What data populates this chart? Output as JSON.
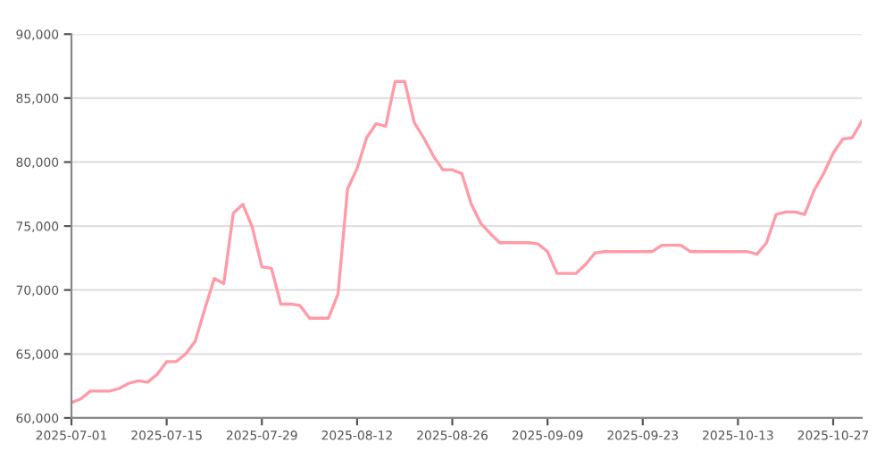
{
  "chart_data": {
    "type": "line",
    "categories": [
      "2025-07-01",
      null,
      null,
      null,
      null,
      null,
      null,
      null,
      null,
      null,
      "2025-07-15",
      null,
      null,
      null,
      null,
      null,
      null,
      null,
      null,
      null,
      "2025-07-29",
      null,
      null,
      null,
      null,
      null,
      null,
      null,
      null,
      null,
      "2025-08-12",
      null,
      null,
      null,
      null,
      null,
      null,
      null,
      null,
      null,
      "2025-08-26",
      null,
      null,
      null,
      null,
      null,
      null,
      null,
      null,
      null,
      "2025-09-09",
      null,
      null,
      null,
      null,
      null,
      null,
      null,
      null,
      null,
      "2025-09-23",
      null,
      null,
      null,
      null,
      null,
      null,
      null,
      null,
      null,
      "2025-10-13",
      null,
      null,
      null,
      null,
      null,
      null,
      null,
      null,
      null,
      "2025-10-27",
      null,
      null,
      null
    ],
    "series": [
      {
        "color": "#ff9aa6",
        "values": [
          61200,
          61500,
          62100,
          62100,
          62100,
          62300,
          62700,
          62900,
          62800,
          63400,
          64400,
          64400,
          65000,
          66000,
          68500,
          70900,
          70500,
          76000,
          76700,
          74900,
          71800,
          71700,
          68900,
          68900,
          68800,
          67800,
          67800,
          67800,
          69700,
          77900,
          79500,
          81900,
          83000,
          82800,
          86300,
          86300,
          83100,
          81900,
          80500,
          79400,
          79400,
          79100,
          76700,
          75200,
          74400,
          73700,
          73700,
          73700,
          73700,
          73600,
          73000,
          71300,
          71300,
          71300,
          72000,
          72900,
          73000,
          73000,
          73000,
          73000,
          73000,
          73000,
          73500,
          73500,
          73500,
          73000,
          73000,
          73000,
          73000,
          73000,
          73000,
          73000,
          72800,
          73700,
          75900,
          76100,
          76100,
          75900,
          77800,
          79100,
          80700,
          81800,
          81900,
          83200
        ]
      }
    ],
    "ylim": [
      60000,
      90000
    ],
    "yticks": [
      {
        "value": 60000,
        "label": "60,000"
      },
      {
        "value": 65000,
        "label": "65,000"
      },
      {
        "value": 70000,
        "label": "70,000"
      },
      {
        "value": 75000,
        "label": "75,000"
      },
      {
        "value": 80000,
        "label": "80,000"
      },
      {
        "value": 85000,
        "label": "85,000"
      },
      {
        "value": 90000,
        "label": "90,000"
      }
    ],
    "grid": "y",
    "marker": "none",
    "line_style": "solid"
  }
}
